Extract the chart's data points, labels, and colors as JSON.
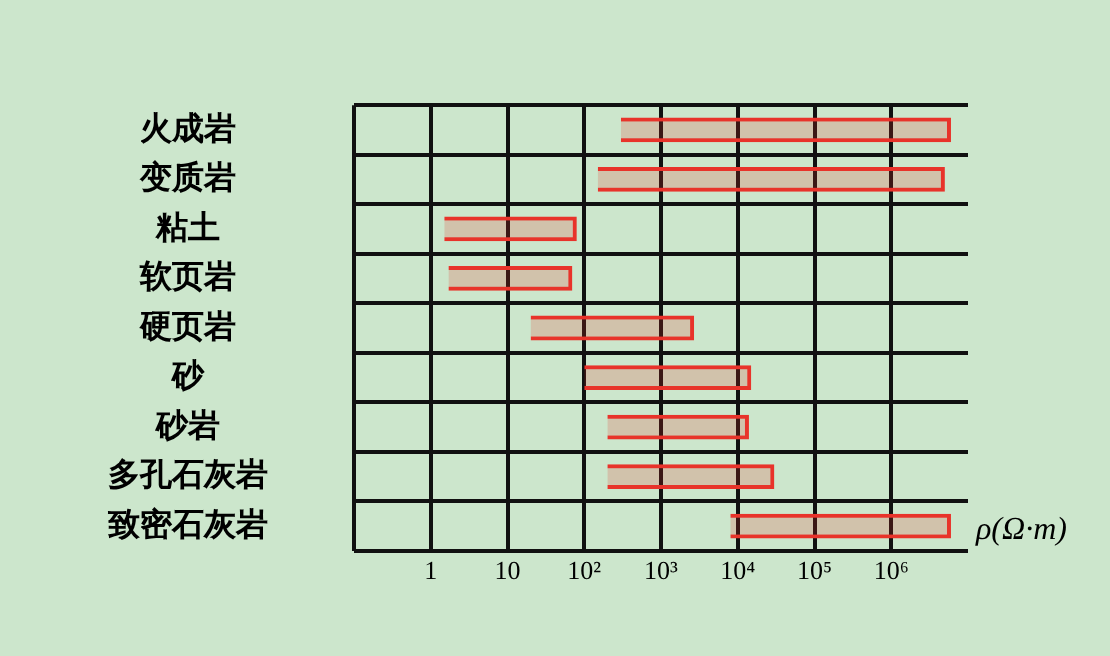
{
  "chart_data": {
    "type": "bar",
    "orientation": "horizontal",
    "log": "x",
    "grid": true,
    "categories": [
      "火成岩",
      "变质岩",
      "粘土",
      "软页岩",
      "硬页岩",
      "砂",
      "砂岩",
      "多孔石灰岩",
      "致密石灰岩"
    ],
    "base": [
      300,
      150,
      1.5,
      1.7,
      20,
      100,
      200,
      200,
      8000
    ],
    "values": [
      5999700,
      4999850,
      78.5,
      68.3,
      2680,
      14900,
      13800,
      29800,
      5992000
    ],
    "color": "#e8332a",
    "xlim": [
      0.1,
      10000000
    ],
    "xticks": [
      {
        "value": 0.1,
        "label": null
      },
      1,
      10,
      {
        "value": 100,
        "label": "10²"
      },
      {
        "value": 1000,
        "label": "10³"
      },
      {
        "value": 10000,
        "label": "10⁴"
      },
      {
        "value": 100000,
        "label": "10⁵"
      },
      {
        "value": 1000000,
        "label": "10⁶"
      }
    ],
    "xlabel": "ρ(Ω·m)"
  }
}
